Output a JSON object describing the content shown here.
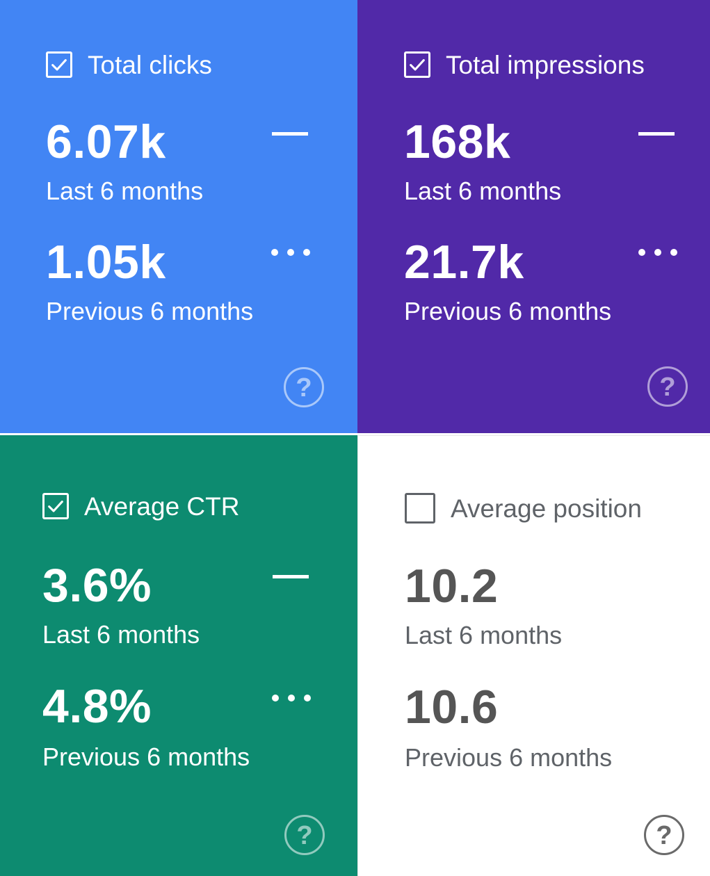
{
  "cards": [
    {
      "id": "total-clicks",
      "label": "Total clicks",
      "checked": true,
      "background": "#4285f4",
      "current_value": "6.07k",
      "current_period": "Last 6 months",
      "previous_value": "1.05k",
      "previous_period": "Previous 6 months",
      "help_icon": "help-circle-icon",
      "help_glyph": "?"
    },
    {
      "id": "total-impressions",
      "label": "Total impressions",
      "checked": true,
      "background": "#5129a8",
      "current_value": "168k",
      "current_period": "Last 6 months",
      "previous_value": "21.7k",
      "previous_period": "Previous 6 months",
      "help_icon": "help-circle-icon",
      "help_glyph": "?"
    },
    {
      "id": "average-ctr",
      "label": "Average CTR",
      "checked": true,
      "background": "#0d8b70",
      "current_value": "3.6%",
      "current_period": "Last 6 months",
      "previous_value": "4.8%",
      "previous_period": "Previous 6 months",
      "help_icon": "help-circle-icon",
      "help_glyph": "?"
    },
    {
      "id": "average-position",
      "label": "Average position",
      "checked": false,
      "background": "#ffffff",
      "text_color": "#5f6368",
      "current_value": "10.2",
      "current_period": "Last 6 months",
      "previous_value": "10.6",
      "previous_period": "Previous 6 months",
      "help_icon": "help-circle-icon",
      "help_glyph": "?"
    }
  ]
}
